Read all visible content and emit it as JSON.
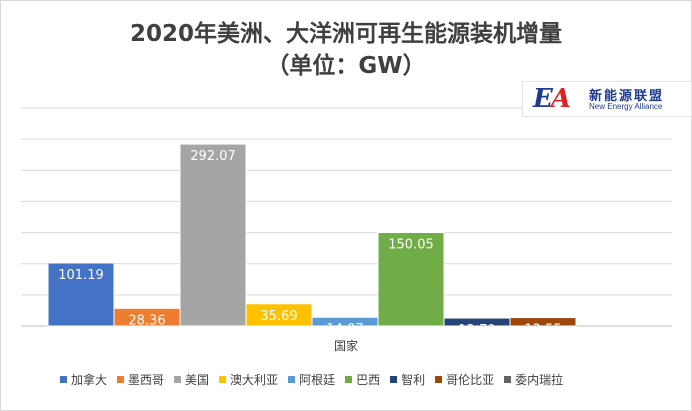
{
  "title_line1": "2020年美洲、大洋洲可再生能源装机增量",
  "title_line2": "（单位：GW）",
  "logo": {
    "mark_e": "E",
    "mark_a": "A",
    "cn": "新能源联盟",
    "en": "New Energy Alliance"
  },
  "chart_data": {
    "type": "bar",
    "title": "2020年美洲、大洋洲可再生能源装机增量（单位：GW）",
    "xlabel": "国家",
    "ylabel": "",
    "ylim": [
      0,
      350
    ],
    "grid": true,
    "legend_position": "bottom",
    "categories": [
      "国家"
    ],
    "series": [
      {
        "name": "加拿大",
        "value": 101.19,
        "label": "101.19",
        "color": "#4472c4"
      },
      {
        "name": "墨西哥",
        "value": 28.36,
        "label": "28.36",
        "color": "#ed7d31"
      },
      {
        "name": "美国",
        "value": 292.07,
        "label": "292.07",
        "color": "#a5a5a5"
      },
      {
        "name": "澳大利亚",
        "value": 35.69,
        "label": "35.69",
        "color": "#ffc000"
      },
      {
        "name": "阿根廷",
        "value": 14.07,
        "label": "14.07",
        "color": "#5b9bd5"
      },
      {
        "name": "巴西",
        "value": 150.05,
        "label": "150.05",
        "color": "#70ad47"
      },
      {
        "name": "智利",
        "value": 12.79,
        "label": "12.79",
        "color": "#264478"
      },
      {
        "name": "哥伦比亚",
        "value": 13.55,
        "label": "13.55",
        "color": "#9e480e"
      },
      {
        "name": "委内瑞拉",
        "value": 0,
        "label": "",
        "color": "#636363"
      }
    ]
  }
}
